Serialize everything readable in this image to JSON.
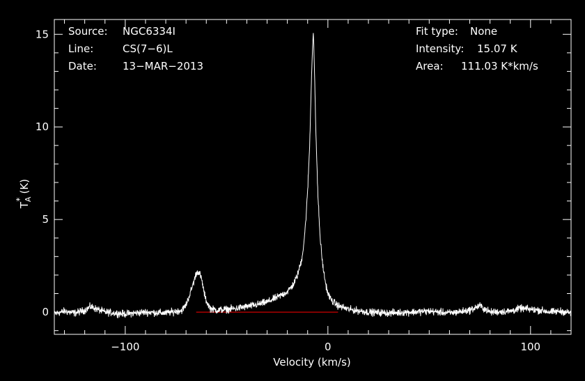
{
  "chart_data": {
    "type": "line",
    "xlabel": "Velocity (km/s)",
    "ylabel": "T",
    "ylabel_sub": "A",
    "ylabel_sup": "*",
    "ylabel_unit": "(K)",
    "xlim": [
      -135,
      120
    ],
    "ylim": [
      -1.2,
      15.8
    ],
    "x_ticks": [
      {
        "value": -100,
        "label": "−100"
      },
      {
        "value": 0,
        "label": "0"
      },
      {
        "value": 100,
        "label": "100"
      }
    ],
    "y_ticks": [
      {
        "value": 0,
        "label": "0"
      },
      {
        "value": 5,
        "label": "5"
      },
      {
        "value": 10,
        "label": "10"
      },
      {
        "value": 15,
        "label": "15"
      }
    ],
    "baseline": 0,
    "grid": false,
    "series": [
      {
        "color": "#ffffff",
        "x": [
          -135,
          -130,
          -125,
          -120,
          -117,
          -115,
          -110,
          -100,
          -90,
          -80,
          -72,
          -70,
          -68,
          -66,
          -65,
          -64,
          -63,
          -62,
          -61,
          -60,
          -58,
          -55,
          -50,
          -45,
          -40,
          -35,
          -30,
          -25,
          -20,
          -17,
          -15,
          -13,
          -12,
          -11,
          -10,
          -9,
          -8.5,
          -8,
          -7.5,
          -7.2,
          -7,
          -6.5,
          -6,
          -5,
          -4,
          -3,
          -2,
          -1,
          0,
          2,
          5,
          10,
          20,
          30,
          40,
          50,
          60,
          70,
          73,
          75,
          77,
          80,
          90,
          95,
          100,
          105,
          110,
          115,
          120
        ],
        "y": [
          -0.1,
          0.05,
          -0.05,
          0.1,
          0.3,
          0.2,
          0.0,
          -0.1,
          0.0,
          -0.05,
          0.1,
          0.4,
          1.0,
          1.7,
          2.1,
          2.2,
          2.0,
          1.6,
          1.0,
          0.6,
          0.2,
          0.1,
          0.15,
          0.2,
          0.3,
          0.4,
          0.55,
          0.8,
          1.1,
          1.5,
          2.0,
          2.8,
          3.6,
          4.8,
          6.5,
          9.0,
          11.0,
          13.0,
          14.5,
          15.07,
          14.6,
          12.5,
          10.0,
          6.5,
          4.3,
          3.0,
          2.1,
          1.5,
          1.0,
          0.6,
          0.35,
          0.15,
          0.0,
          -0.05,
          0.0,
          0.05,
          -0.05,
          0.1,
          0.25,
          0.35,
          0.2,
          0.0,
          0.05,
          0.2,
          0.15,
          0.1,
          0.0,
          0.05,
          -0.05
        ]
      }
    ],
    "baseline_color": "#ff0000",
    "noise_amplitude": 0.16
  },
  "info_left": [
    {
      "label": "Source:",
      "value": "NGC6334I"
    },
    {
      "label": "Line:",
      "value": "CS(7−6)L"
    },
    {
      "label": "Date:",
      "value": "13−MAR−2013"
    }
  ],
  "info_right": [
    {
      "label": "Fit type:",
      "value": "None"
    },
    {
      "label": "Intensity:",
      "value": "15.07 K"
    },
    {
      "label": "Area:",
      "value": "111.03 K*km/s"
    }
  ]
}
